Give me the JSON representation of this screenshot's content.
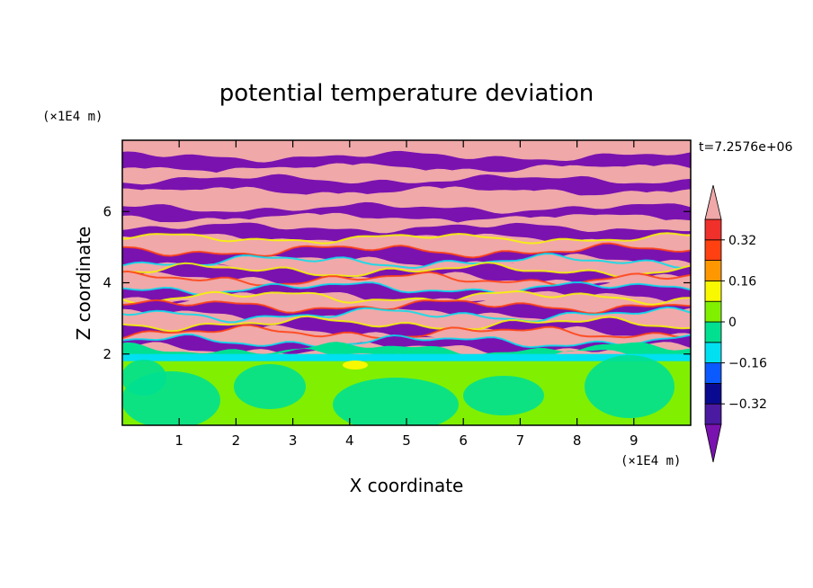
{
  "chart_data": {
    "type": "heatmap",
    "title": "potential temperature deviation",
    "xlabel": "X coordinate",
    "ylabel": "Z coordinate",
    "x_unit": "(×1E4 m)",
    "z_unit": "(×1E4 m)",
    "time_label": "t=7.2576e+06",
    "xlim": [
      0,
      10
    ],
    "ylim": [
      0,
      8
    ],
    "x_ticks": [
      "1",
      "2",
      "3",
      "4",
      "5",
      "6",
      "7",
      "8",
      "9"
    ],
    "y_ticks": [
      "2",
      "4",
      "6"
    ],
    "colorbar": {
      "levels": [
        -0.4,
        -0.32,
        -0.24,
        -0.16,
        -0.08,
        0,
        0.08,
        0.16,
        0.24,
        0.32,
        0.4
      ],
      "labels": [
        "0.32",
        "0.16",
        "0",
        "-0.16",
        "-0.32"
      ],
      "colors_bottom_to_top": [
        "#7a12b0",
        "#4a1aa0",
        "#0a0a90",
        "#0a5aff",
        "#00e0f0",
        "#00e090",
        "#80f000",
        "#f8f800",
        "#ff9800",
        "#ff4010",
        "#f0302a",
        "#f0a8a8"
      ],
      "extend": "both"
    },
    "bands": [
      {
        "z_top": 8.0,
        "z_bottom": 7.55,
        "value": "high"
      },
      {
        "z_top": 7.55,
        "z_bottom": 7.2,
        "value": "low"
      },
      {
        "z_top": 7.2,
        "z_bottom": 6.9,
        "value": "high"
      },
      {
        "z_top": 6.9,
        "z_bottom": 6.55,
        "value": "low"
      },
      {
        "z_top": 6.55,
        "z_bottom": 6.1,
        "value": "high"
      },
      {
        "z_top": 6.1,
        "z_bottom": 5.8,
        "value": "low"
      },
      {
        "z_top": 5.8,
        "z_bottom": 5.55,
        "value": "high"
      },
      {
        "z_top": 5.55,
        "z_bottom": 5.25,
        "value": "low"
      },
      {
        "z_top": 5.25,
        "z_bottom": 4.9,
        "value": "high"
      },
      {
        "z_top": 4.9,
        "z_bottom": 4.6,
        "value": "low"
      },
      {
        "z_top": 4.6,
        "z_bottom": 4.35,
        "value": "high"
      },
      {
        "z_top": 4.35,
        "z_bottom": 4.1,
        "value": "low"
      },
      {
        "z_top": 4.1,
        "z_bottom": 3.85,
        "value": "high"
      },
      {
        "z_top": 3.85,
        "z_bottom": 3.6,
        "value": "low"
      },
      {
        "z_top": 3.6,
        "z_bottom": 3.35,
        "value": "high"
      },
      {
        "z_top": 3.35,
        "z_bottom": 3.1,
        "value": "low"
      },
      {
        "z_top": 3.1,
        "z_bottom": 2.85,
        "value": "high"
      },
      {
        "z_top": 2.85,
        "z_bottom": 2.6,
        "value": "low"
      },
      {
        "z_top": 2.6,
        "z_bottom": 2.35,
        "value": "high"
      },
      {
        "z_top": 2.35,
        "z_bottom": 2.15,
        "value": "low"
      },
      {
        "z_top": 2.15,
        "z_bottom": 1.95,
        "value": "neutral"
      },
      {
        "z_top": 1.95,
        "z_bottom": 0.0,
        "value": "near-zero"
      }
    ]
  }
}
